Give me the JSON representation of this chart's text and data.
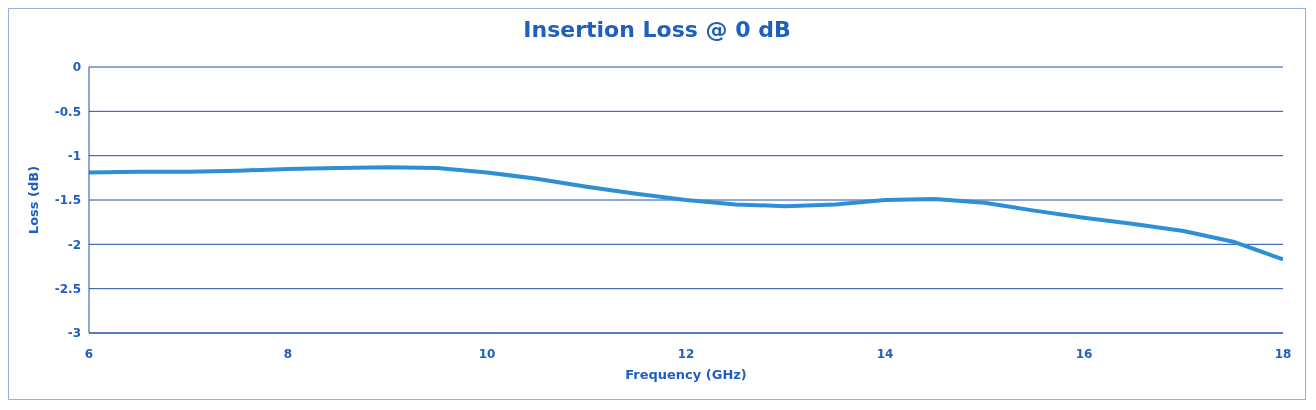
{
  "chart_data": {
    "type": "line",
    "title": "Insertion Loss @ 0 dB",
    "xlabel": "Frequency (GHz)",
    "ylabel": "Loss (dB)",
    "x": [
      6,
      6.5,
      7,
      7.5,
      8,
      8.5,
      9,
      9.5,
      10,
      10.5,
      11,
      11.5,
      12,
      12.5,
      13,
      13.5,
      14,
      14.5,
      15,
      15.5,
      16,
      16.5,
      17,
      17.5,
      18
    ],
    "series": [
      {
        "color": "#2f8fd4",
        "values": [
          -1.19,
          -1.18,
          -1.18,
          -1.17,
          -1.15,
          -1.14,
          -1.13,
          -1.14,
          -1.19,
          -1.26,
          -1.35,
          -1.43,
          -1.5,
          -1.55,
          -1.57,
          -1.55,
          -1.5,
          -1.49,
          -1.53,
          -1.62,
          -1.7,
          -1.77,
          -1.85,
          -1.97,
          -2.17
        ]
      }
    ],
    "xlim": [
      6,
      18
    ],
    "xticks": [
      6,
      8,
      10,
      12,
      14,
      16,
      18
    ],
    "ylim": [
      -3,
      0
    ],
    "yticks": [
      -3,
      -2.5,
      -2,
      -1.5,
      -1,
      -0.5,
      0
    ],
    "grid": "y",
    "legend": false,
    "marker": "none",
    "line_style": "solid"
  }
}
